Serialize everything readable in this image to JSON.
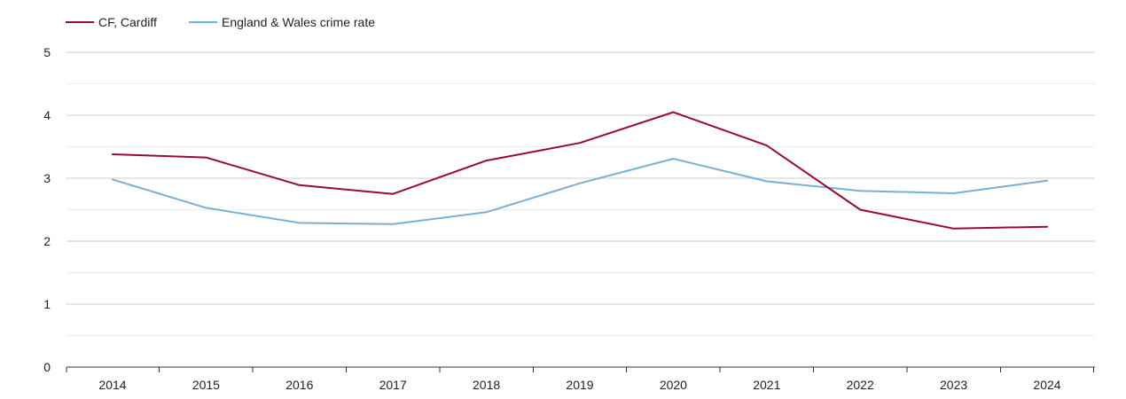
{
  "chart_data": {
    "type": "line",
    "title": "",
    "xlabel": "",
    "ylabel": "",
    "categories": [
      "2014",
      "2015",
      "2016",
      "2017",
      "2018",
      "2019",
      "2020",
      "2021",
      "2022",
      "2023",
      "2024"
    ],
    "ylim": [
      0,
      5
    ],
    "yticks": [
      "0",
      "1",
      "2",
      "3",
      "4",
      "5"
    ],
    "grid": true,
    "legend_position": "top-left",
    "series": [
      {
        "name": "CF, Cardiff",
        "color": "#9b0b31",
        "values": [
          3.38,
          3.33,
          2.89,
          2.75,
          3.28,
          3.56,
          4.05,
          3.52,
          2.5,
          2.2,
          2.23
        ]
      },
      {
        "name": "England & Wales crime rate",
        "color": "#7aafd4",
        "values": [
          2.98,
          2.53,
          2.29,
          2.27,
          2.46,
          2.92,
          3.31,
          2.95,
          2.8,
          2.76,
          2.96
        ]
      }
    ]
  }
}
